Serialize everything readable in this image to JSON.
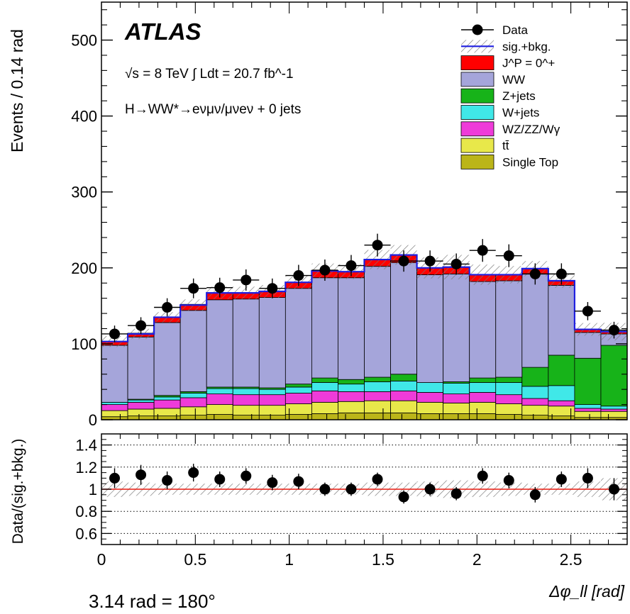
{
  "chart_data": [
    {
      "type": "bar",
      "panel": "main",
      "stacked": true,
      "ylabel": "Events / 0.14 rad",
      "ylim": [
        0,
        550
      ],
      "yticks": [
        0,
        100,
        200,
        300,
        400,
        500
      ],
      "bin_width": 0.14,
      "x_low_edges": [
        0,
        0.14,
        0.28,
        0.42,
        0.56,
        0.7,
        0.84,
        0.98,
        1.12,
        1.26,
        1.4,
        1.54,
        1.68,
        1.82,
        1.96,
        2.1,
        2.24,
        2.38,
        2.52,
        2.66
      ],
      "series": [
        {
          "name": "Single Top",
          "color": "#bbb519",
          "values": [
            4,
            5,
            5,
            6,
            7,
            6,
            6,
            7,
            8,
            9,
            9,
            9,
            8,
            8,
            8,
            7,
            6,
            5,
            3,
            3
          ]
        },
        {
          "name": "tt̄",
          "color": "#e8e84a",
          "values": [
            8,
            9,
            10,
            11,
            13,
            13,
            13,
            14,
            15,
            15,
            16,
            16,
            15,
            14,
            15,
            14,
            13,
            13,
            8,
            8
          ]
        },
        {
          "name": "WZ/ZZ/Wγ",
          "color": "#ef3bd9",
          "values": [
            8,
            9,
            11,
            12,
            14,
            14,
            14,
            14,
            15,
            13,
            12,
            13,
            13,
            12,
            13,
            12,
            9,
            7,
            4,
            3
          ]
        },
        {
          "name": "W+jets",
          "color": "#40e8e8",
          "values": [
            3,
            3,
            4,
            6,
            7,
            8,
            7,
            8,
            11,
            10,
            13,
            13,
            13,
            14,
            13,
            16,
            16,
            20,
            5,
            4
          ]
        },
        {
          "name": "Z+jets",
          "color": "#17b319",
          "values": [
            0,
            1,
            2,
            2,
            2,
            2,
            2,
            4,
            6,
            6,
            6,
            9,
            0,
            2,
            6,
            7,
            25,
            40,
            61,
            80
          ]
        },
        {
          "name": "WW",
          "color": "#a5a5da",
          "values": [
            75,
            82,
            96,
            107,
            115,
            116,
            119,
            126,
            132,
            134,
            146,
            147,
            142,
            142,
            127,
            127,
            123,
            92,
            34,
            15
          ]
        },
        {
          "name": "J^P = 0^+",
          "color": "#ff0000",
          "values": [
            5,
            5,
            7,
            8,
            9,
            8,
            8,
            8,
            9,
            8,
            9,
            10,
            9,
            9,
            9,
            8,
            7,
            6,
            4,
            3
          ]
        }
      ],
      "total_sig_bkg": [
        103,
        113,
        135,
        151,
        167,
        167,
        169,
        181,
        196,
        195,
        211,
        217,
        200,
        201,
        191,
        191,
        199,
        183,
        119,
        116
      ],
      "data": {
        "name": "Data",
        "x": [
          0.07,
          0.21,
          0.35,
          0.49,
          0.63,
          0.77,
          0.91,
          1.05,
          1.19,
          1.33,
          1.47,
          1.61,
          1.75,
          1.89,
          2.03,
          2.17,
          2.31,
          2.45,
          2.59,
          2.73
        ],
        "y": [
          113,
          124,
          148,
          173,
          174,
          184,
          173,
          190,
          197,
          203,
          230,
          209,
          209,
          205,
          223,
          216,
          192,
          192,
          143,
          118
        ],
        "yerr": [
          11,
          11,
          12,
          13,
          13,
          14,
          13,
          14,
          14,
          14,
          15,
          14,
          14,
          14,
          15,
          15,
          14,
          14,
          12,
          11
        ]
      },
      "legend": {
        "placement": "top-right",
        "entries": [
          "Data",
          "sig.+bkg.",
          "J^P = 0^+",
          "WW",
          "Z+jets",
          "W+jets",
          "WZ/ZZ/Wγ",
          "tt̄",
          "Single Top"
        ]
      },
      "annotations": {
        "experiment": "ATLAS",
        "energy_lumi": "√s = 8 TeV ∫ Ldt = 20.7 fb^-1",
        "channel": "H→WW*→eνμν/μνeν + 0 jets"
      },
      "sig_bkg_line_color": "#1f1fe0",
      "band_style": "hatched"
    },
    {
      "type": "scatter",
      "panel": "ratio",
      "ylabel": "Data/(sig.+bkg.)",
      "xlabel": "Δφ_ll [rad]",
      "xlim": [
        0,
        2.8
      ],
      "ylim": [
        0.5,
        1.5
      ],
      "xticks": [
        0,
        0.5,
        1,
        1.5,
        2,
        2.5
      ],
      "yticks": [
        0.6,
        0.8,
        1,
        1.2,
        1.4
      ],
      "ytick_labels": [
        "0.6",
        "0.8",
        "1",
        "1.2",
        "1.4"
      ],
      "grid_y": [
        0.6,
        0.8,
        1.2,
        1.4
      ],
      "reference_line": 1,
      "reference_color": "#e8190f",
      "x": [
        0.07,
        0.21,
        0.35,
        0.49,
        0.63,
        0.77,
        0.91,
        1.05,
        1.19,
        1.33,
        1.47,
        1.61,
        1.75,
        1.89,
        2.03,
        2.17,
        2.31,
        2.45,
        2.59,
        2.73
      ],
      "y": [
        1.1,
        1.13,
        1.08,
        1.15,
        1.09,
        1.12,
        1.06,
        1.07,
        1.0,
        1.0,
        1.09,
        0.93,
        1.0,
        0.96,
        1.12,
        1.08,
        0.95,
        1.09,
        1.1,
        1.0
      ],
      "yerr": [
        0.09,
        0.09,
        0.08,
        0.08,
        0.07,
        0.07,
        0.07,
        0.07,
        0.06,
        0.06,
        0.06,
        0.06,
        0.06,
        0.06,
        0.07,
        0.07,
        0.07,
        0.07,
        0.09,
        0.1
      ],
      "band_halfwidth": [
        0.07,
        0.06,
        0.05,
        0.05,
        0.05,
        0.05,
        0.05,
        0.05,
        0.05,
        0.05,
        0.06,
        0.06,
        0.07,
        0.08,
        0.07,
        0.06,
        0.05,
        0.05,
        0.07,
        0.1
      ]
    }
  ],
  "footnote": "3.14 rad = 180°"
}
